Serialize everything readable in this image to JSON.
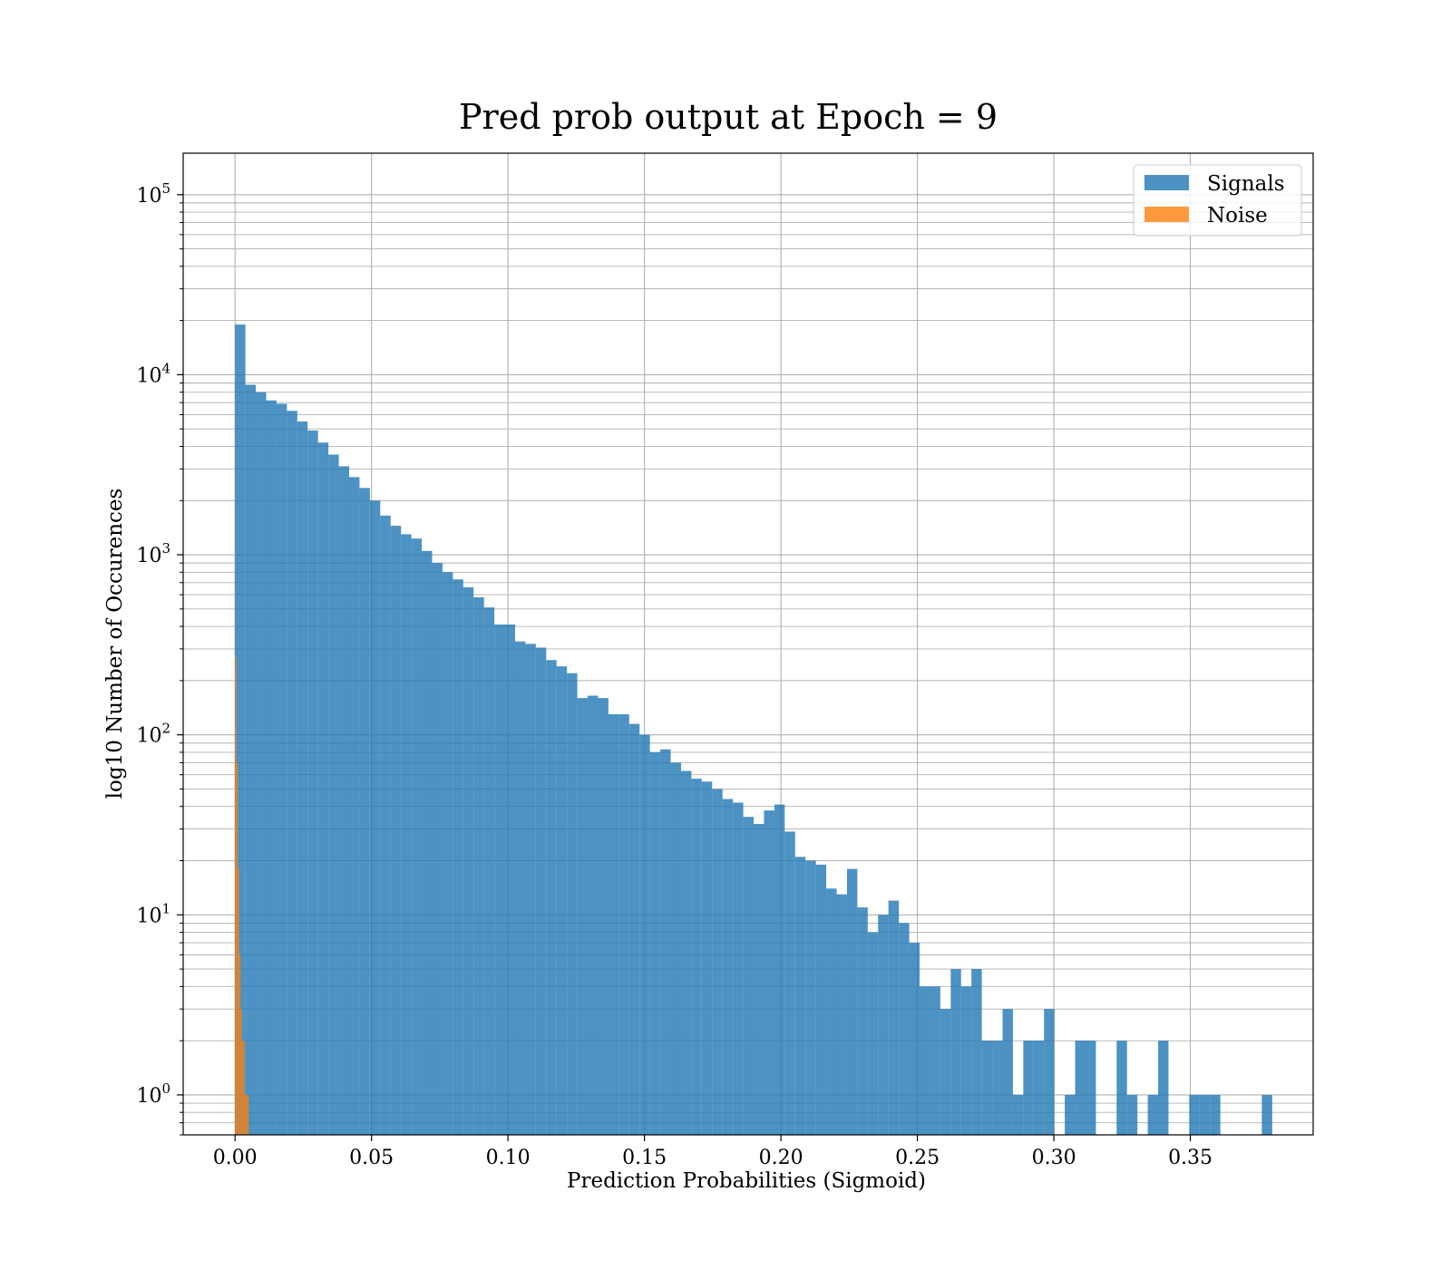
{
  "chart_data": {
    "type": "bar",
    "title": "Pred prob output at Epoch = 9",
    "xlabel": "Prediction Probabilities (Sigmoid)",
    "ylabel": "log10 Number of Occurences",
    "xlim": [
      -0.019,
      0.395
    ],
    "ylim": [
      0.6,
      170000
    ],
    "yscale": "log",
    "grid": true,
    "legend_position": "top-right",
    "x_ticks": [
      "0.00",
      "0.05",
      "0.10",
      "0.15",
      "0.20",
      "0.25",
      "0.30",
      "0.35"
    ],
    "x_tick_values": [
      0.0,
      0.05,
      0.1,
      0.15,
      0.2,
      0.25,
      0.3,
      0.35
    ],
    "y_ticks": [
      {
        "base": "10",
        "exp": "0",
        "value": 1
      },
      {
        "base": "10",
        "exp": "1",
        "value": 10
      },
      {
        "base": "10",
        "exp": "2",
        "value": 100
      },
      {
        "base": "10",
        "exp": "3",
        "value": 1000
      },
      {
        "base": "10",
        "exp": "4",
        "value": 10000
      },
      {
        "base": "10",
        "exp": "5",
        "value": 100000
      }
    ],
    "series": [
      {
        "name": "Signals",
        "color": "#1f77b4",
        "bin_start": 0.0,
        "bin_width": 0.0038,
        "values": [
          19000,
          8800,
          8000,
          7200,
          6900,
          6300,
          5500,
          4900,
          4200,
          3600,
          3100,
          2700,
          2350,
          2000,
          1650,
          1450,
          1300,
          1230,
          1050,
          900,
          800,
          730,
          660,
          580,
          510,
          410,
          410,
          330,
          320,
          305,
          260,
          240,
          220,
          160,
          165,
          160,
          130,
          130,
          115,
          100,
          80,
          83,
          70,
          63,
          57,
          55,
          50,
          44,
          42,
          35,
          32,
          38,
          41,
          29,
          21,
          20,
          19,
          14,
          13,
          18,
          11,
          8,
          10,
          12,
          9,
          7,
          4,
          4,
          3,
          5,
          4,
          5,
          2,
          2,
          3,
          1,
          2,
          2,
          3,
          0,
          1,
          2,
          2,
          0,
          0,
          2,
          1,
          0,
          1,
          2,
          0,
          0,
          1,
          1,
          1,
          0,
          0,
          0,
          0,
          1
        ]
      },
      {
        "name": "Noise",
        "color": "#ff7f0e",
        "bin_start": 0.0,
        "bin_width": 0.0005,
        "values": [
          270,
          70,
          18,
          6,
          3,
          2,
          2,
          1,
          1,
          1
        ]
      }
    ]
  }
}
